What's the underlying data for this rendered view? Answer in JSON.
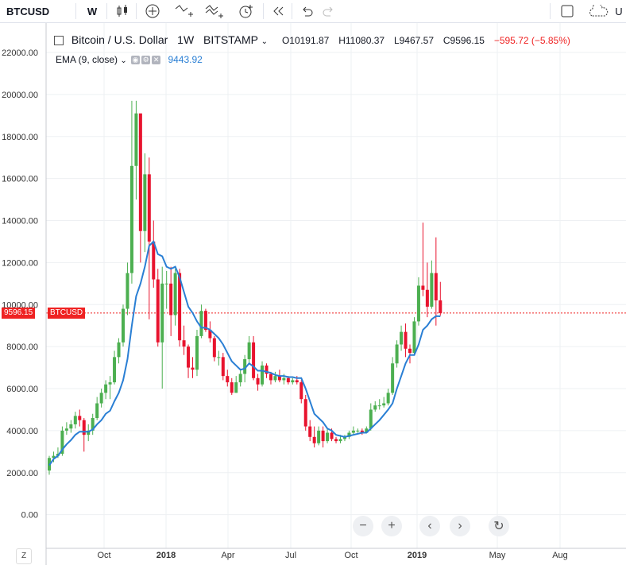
{
  "toolbar": {
    "symbol": "BTCUSD",
    "interval": "W",
    "right_partial": "U"
  },
  "legend": {
    "title": "Bitcoin / U.S. Dollar",
    "interval": "1W",
    "exchange": "BITSTAMP",
    "open": "O10191.87",
    "high": "H11080.37",
    "low": "L9467.57",
    "close": "C9596.15",
    "change": "−595.72 (−5.85%)"
  },
  "ema": {
    "label": "EMA (9, close)",
    "value": "9443.92"
  },
  "price_tag": "9596.15",
  "symbol_tag": "BTCUSD",
  "nav": {
    "zoom_out": "−",
    "zoom_in": "+",
    "left": "‹",
    "right": "›",
    "reset": "↻"
  },
  "z_button": "Z",
  "colors": {
    "up": "#4caf50",
    "down": "#e8132e",
    "ema": "#2a7fd4",
    "last_price": "#ef2222"
  },
  "chart_data": {
    "type": "candlestick",
    "y_ticks": [
      "0.00",
      "2000.00",
      "4000.00",
      "6000.00",
      "8000.00",
      "10000.00",
      "12000.00",
      "14000.00",
      "16000.00",
      "18000.00",
      "20000.00",
      "22000.00"
    ],
    "x_ticks": [
      "Oct",
      "2018",
      "Apr",
      "Jul",
      "Oct",
      "2019",
      "May",
      "Aug"
    ],
    "ylim": [
      -1300,
      23400
    ],
    "last_price": 9596.15,
    "candles": [
      [
        2100,
        2700,
        1900,
        2800
      ],
      [
        2700,
        2800,
        2500,
        3000
      ],
      [
        2800,
        2900,
        2700,
        3200
      ],
      [
        2900,
        4000,
        2800,
        4200
      ],
      [
        4000,
        4100,
        3800,
        4400
      ],
      [
        4100,
        4300,
        3900,
        4500
      ],
      [
        4300,
        4700,
        4100,
        4900
      ],
      [
        4700,
        4500,
        4200,
        5000
      ],
      [
        4500,
        3800,
        3000,
        4600
      ],
      [
        3800,
        4000,
        3500,
        4300
      ],
      [
        4000,
        4600,
        3800,
        4800
      ],
      [
        4600,
        5300,
        4500,
        5600
      ],
      [
        5300,
        5800,
        5100,
        6000
      ],
      [
        5800,
        6200,
        5500,
        6400
      ],
      [
        6200,
        6300,
        5500,
        6600
      ],
      [
        6300,
        7500,
        6200,
        7800
      ],
      [
        7500,
        8200,
        7200,
        8400
      ],
      [
        8200,
        9800,
        8000,
        10000
      ],
      [
        9800,
        11500,
        9500,
        12000
      ],
      [
        11500,
        16600,
        11000,
        19700
      ],
      [
        16600,
        19100,
        15000,
        19700
      ],
      [
        19100,
        13500,
        12000,
        19000
      ],
      [
        13500,
        16200,
        12500,
        17200
      ],
      [
        16200,
        13000,
        9300,
        17000
      ],
      [
        13000,
        11200,
        10800,
        14000
      ],
      [
        11200,
        8200,
        8000,
        11700
      ],
      [
        8200,
        11000,
        6000,
        11800
      ],
      [
        11000,
        11000,
        9800,
        11600
      ],
      [
        11000,
        9500,
        8500,
        11800
      ],
      [
        9500,
        11500,
        9000,
        11700
      ],
      [
        11500,
        8300,
        8000,
        11700
      ],
      [
        8300,
        8000,
        7600,
        9000
      ],
      [
        8000,
        7000,
        6500,
        8100
      ],
      [
        7000,
        6900,
        6500,
        7500
      ],
      [
        6900,
        8500,
        6600,
        8800
      ],
      [
        8500,
        9700,
        8400,
        10000
      ],
      [
        9700,
        8800,
        8700,
        9800
      ],
      [
        8800,
        8400,
        8200,
        9200
      ],
      [
        8400,
        7500,
        7300,
        8500
      ],
      [
        7500,
        7500,
        7100,
        7800
      ],
      [
        7500,
        6600,
        6400,
        7700
      ],
      [
        6600,
        6300,
        6100,
        6900
      ],
      [
        6300,
        5800,
        5700,
        6500
      ],
      [
        5800,
        6300,
        5800,
        6600
      ],
      [
        6300,
        6700,
        6100,
        6900
      ],
      [
        6700,
        7400,
        6300,
        7600
      ],
      [
        7400,
        8200,
        7200,
        8500
      ],
      [
        8200,
        6500,
        6400,
        8500
      ],
      [
        6500,
        6200,
        5900,
        6700
      ],
      [
        6200,
        7100,
        6100,
        7300
      ],
      [
        7100,
        6700,
        6500,
        7200
      ],
      [
        6700,
        6400,
        6200,
        6800
      ],
      [
        6400,
        6600,
        6300,
        6800
      ],
      [
        6600,
        6400,
        6300,
        6900
      ],
      [
        6400,
        6500,
        6200,
        6700
      ],
      [
        6500,
        6300,
        6200,
        6600
      ],
      [
        6300,
        6400,
        6200,
        6500
      ],
      [
        6400,
        6300,
        6200,
        6600
      ],
      [
        6300,
        5500,
        5300,
        6400
      ],
      [
        5500,
        4200,
        4000,
        5700
      ],
      [
        4200,
        3700,
        3500,
        4500
      ],
      [
        3700,
        3400,
        3200,
        4200
      ],
      [
        3400,
        4000,
        3300,
        4200
      ],
      [
        4000,
        3500,
        3200,
        4200
      ],
      [
        3500,
        3900,
        3400,
        4100
      ],
      [
        3900,
        3600,
        3500,
        4100
      ],
      [
        3600,
        3500,
        3400,
        3700
      ],
      [
        3500,
        3600,
        3400,
        3800
      ],
      [
        3600,
        3700,
        3500,
        3800
      ],
      [
        3700,
        3900,
        3600,
        4000
      ],
      [
        3900,
        4000,
        3800,
        4200
      ],
      [
        4000,
        4000,
        3900,
        4100
      ],
      [
        4000,
        3900,
        3800,
        4100
      ],
      [
        3900,
        4100,
        3900,
        4200
      ],
      [
        4100,
        5000,
        4000,
        5300
      ],
      [
        5000,
        5200,
        4900,
        5400
      ],
      [
        5200,
        5200,
        5000,
        5500
      ],
      [
        5200,
        5300,
        5100,
        5600
      ],
      [
        5300,
        5800,
        5200,
        6000
      ],
      [
        5800,
        7200,
        5700,
        7500
      ],
      [
        7200,
        8100,
        7000,
        8300
      ],
      [
        8100,
        8700,
        7800,
        9000
      ],
      [
        8700,
        7900,
        7500,
        9100
      ],
      [
        7900,
        7700,
        7200,
        8100
      ],
      [
        7700,
        9200,
        7600,
        9400
      ],
      [
        9200,
        10900,
        9000,
        11300
      ],
      [
        10900,
        10700,
        10400,
        13900
      ],
      [
        10700,
        9900,
        9400,
        12000
      ],
      [
        9900,
        11500,
        9800,
        12100
      ],
      [
        11500,
        10200,
        9000,
        13200
      ],
      [
        10200,
        9596,
        9467,
        11080
      ]
    ],
    "ema": [
      2350,
      2650,
      2800,
      3100,
      3350,
      3550,
      3800,
      3950,
      3950,
      3950,
      4050,
      4300,
      4500,
      4800,
      4950,
      5400,
      5800,
      6400,
      7400,
      9000,
      10400,
      11000,
      11800,
      12800,
      13000,
      12400,
      12300,
      11800,
      11700,
      11800,
      11300,
      10600,
      9900,
      9600,
      9200,
      8900,
      8900,
      8800,
      8600,
      8400,
      8100,
      7700,
      7300,
      7100,
      6900,
      6950,
      7200,
      7050,
      6850,
      6850,
      6800,
      6750,
      6650,
      6600,
      6600,
      6550,
      6550,
      6500,
      6500,
      6000,
      5400,
      4800,
      4600,
      4400,
      4100,
      4000,
      3800,
      3750,
      3700,
      3750,
      3800,
      3850,
      3900,
      3900,
      4100,
      4300,
      4500,
      4750,
      5000,
      5300,
      6000,
      6600,
      7200,
      7600,
      7600,
      8100,
      8800,
      9000,
      9300,
      9450,
      9443.92
    ]
  }
}
